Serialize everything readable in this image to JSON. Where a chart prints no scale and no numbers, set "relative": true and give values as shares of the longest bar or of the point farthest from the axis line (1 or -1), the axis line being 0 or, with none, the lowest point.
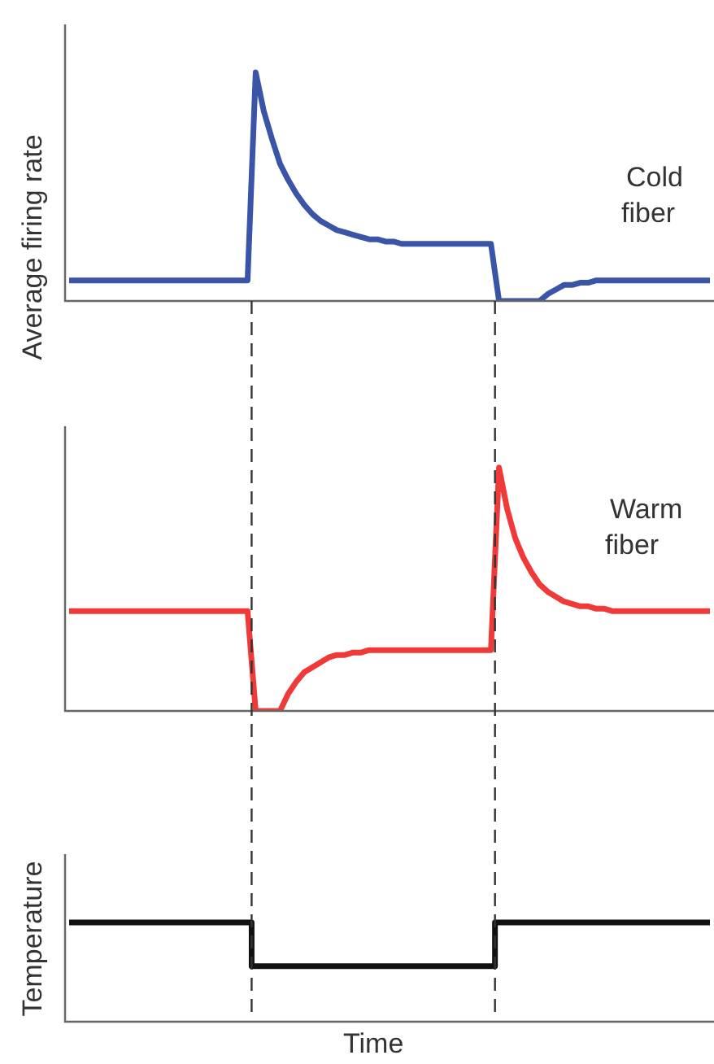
{
  "chart_data": [
    {
      "type": "line",
      "ylabel": "Average firing rate",
      "relative": true,
      "categories": [
        null,
        null,
        null,
        null,
        null,
        null,
        null,
        null,
        null,
        null,
        null,
        null,
        null,
        null,
        null,
        null,
        null,
        null,
        null,
        null,
        null,
        null,
        null,
        null,
        null,
        null,
        null,
        null,
        null,
        null,
        null,
        null,
        null,
        null,
        null,
        null,
        null,
        null,
        null,
        null,
        null,
        null,
        null,
        null,
        null,
        null,
        null,
        null,
        null,
        null,
        null,
        null,
        null,
        null,
        null,
        null,
        null,
        null,
        null,
        null,
        null,
        null,
        null,
        null,
        null,
        null,
        null,
        null,
        null,
        null,
        null,
        null,
        null,
        null,
        null,
        null,
        null,
        null,
        null,
        null
      ],
      "legend": false,
      "marker": "none",
      "series": [
        {
          "name": "Cold fiber",
          "color": "#3a55a8",
          "values": [
            0.09,
            0.09,
            0.09,
            0.09,
            0.09,
            0.09,
            0.09,
            0.09,
            0.09,
            0.09,
            0.09,
            0.09,
            0.09,
            0.09,
            0.09,
            0.09,
            0.09,
            0.09,
            0.09,
            0.09,
            0.09,
            0.09,
            0.09,
            1.0,
            0.83,
            0.71,
            0.6,
            0.53,
            0.47,
            0.42,
            0.38,
            0.35,
            0.33,
            0.31,
            0.3,
            0.29,
            0.28,
            0.27,
            0.27,
            0.26,
            0.26,
            0.25,
            0.25,
            0.25,
            0.25,
            0.25,
            0.25,
            0.25,
            0.25,
            0.25,
            0.25,
            0.25,
            0.25,
            0,
            0,
            0,
            0,
            0,
            0,
            0.03,
            0.05,
            0.07,
            0.07,
            0.08,
            0.08,
            0.09,
            0.09,
            0.09,
            0.09,
            0.09,
            0.09,
            0.09,
            0.09,
            0.09,
            0.09,
            0.09,
            0.09,
            0.09,
            0.09,
            0.09
          ]
        }
      ]
    },
    {
      "type": "line",
      "relative": true,
      "categories": [
        null,
        null,
        null,
        null,
        null,
        null,
        null,
        null,
        null,
        null,
        null,
        null,
        null,
        null,
        null,
        null,
        null,
        null,
        null,
        null,
        null,
        null,
        null,
        null,
        null,
        null,
        null,
        null,
        null,
        null,
        null,
        null,
        null,
        null,
        null,
        null,
        null,
        null,
        null,
        null,
        null,
        null,
        null,
        null,
        null,
        null,
        null,
        null,
        null,
        null,
        null,
        null,
        null,
        null,
        null,
        null,
        null,
        null,
        null,
        null,
        null,
        null,
        null,
        null,
        null,
        null,
        null,
        null,
        null,
        null,
        null,
        null,
        null,
        null,
        null,
        null,
        null,
        null,
        null,
        null
      ],
      "legend": false,
      "marker": "none",
      "series": [
        {
          "name": "Warm fiber",
          "color": "#f03a3a",
          "values": [
            0.41,
            0.41,
            0.41,
            0.41,
            0.41,
            0.41,
            0.41,
            0.41,
            0.41,
            0.41,
            0.41,
            0.41,
            0.41,
            0.41,
            0.41,
            0.41,
            0.41,
            0.41,
            0.41,
            0.41,
            0.41,
            0.41,
            0.41,
            0,
            0,
            0,
            0,
            0.07,
            0.12,
            0.16,
            0.18,
            0.2,
            0.22,
            0.23,
            0.23,
            0.24,
            0.24,
            0.25,
            0.25,
            0.25,
            0.25,
            0.25,
            0.25,
            0.25,
            0.25,
            0.25,
            0.25,
            0.25,
            0.25,
            0.25,
            0.25,
            0.25,
            0.25,
            1.0,
            0.83,
            0.71,
            0.63,
            0.57,
            0.52,
            0.49,
            0.47,
            0.45,
            0.44,
            0.43,
            0.43,
            0.42,
            0.42,
            0.41,
            0.41,
            0.41,
            0.41,
            0.41,
            0.41,
            0.41,
            0.41,
            0.41,
            0.41,
            0.41,
            0.41,
            0.41
          ]
        }
      ]
    },
    {
      "type": "step",
      "ylabel": "Temperature",
      "xlabel": "Time",
      "relative": true,
      "categories": [
        null,
        null,
        null,
        null,
        null,
        null,
        null,
        null,
        null,
        null,
        null,
        null,
        null,
        null,
        null,
        null,
        null,
        null,
        null,
        null,
        null,
        null,
        null,
        null,
        null,
        null,
        null,
        null,
        null,
        null,
        null,
        null,
        null,
        null,
        null,
        null,
        null,
        null,
        null,
        null,
        null,
        null,
        null,
        null,
        null,
        null,
        null,
        null,
        null,
        null,
        null,
        null,
        null,
        null,
        null,
        null,
        null,
        null,
        null,
        null,
        null,
        null,
        null,
        null,
        null,
        null,
        null,
        null,
        null,
        null,
        null,
        null,
        null,
        null,
        null,
        null,
        null,
        null,
        null,
        null
      ],
      "legend": false,
      "marker": "none",
      "series": [
        {
          "color": "#111111",
          "values": [
            1,
            1,
            1,
            1,
            1,
            1,
            1,
            1,
            1,
            1,
            1,
            1,
            1,
            1,
            1,
            1,
            1,
            1,
            1,
            1,
            1,
            1,
            1,
            0.56,
            0.56,
            0.56,
            0.56,
            0.56,
            0.56,
            0.56,
            0.56,
            0.56,
            0.56,
            0.56,
            0.56,
            0.56,
            0.56,
            0.56,
            0.56,
            0.56,
            0.56,
            0.56,
            0.56,
            0.56,
            0.56,
            0.56,
            0.56,
            0.56,
            0.56,
            0.56,
            0.56,
            0.56,
            0.56,
            1,
            1,
            1,
            1,
            1,
            1,
            1,
            1,
            1,
            1,
            1,
            1,
            1,
            1,
            1,
            1,
            1,
            1,
            1,
            1,
            1,
            1,
            1,
            1,
            1,
            1,
            1
          ]
        }
      ]
    }
  ]
}
